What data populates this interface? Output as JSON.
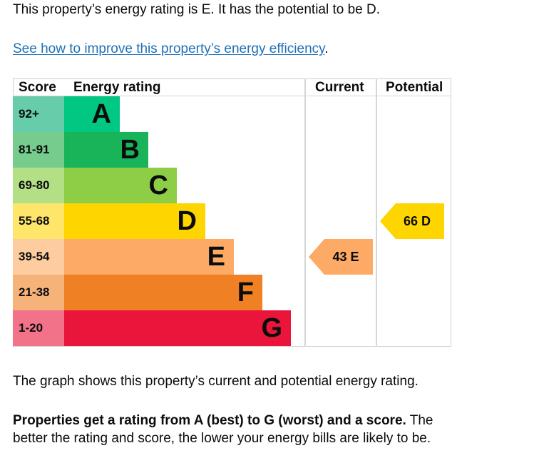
{
  "intro": "This property’s energy rating is E. It has the potential to be D.",
  "link": {
    "text": "See how to improve this property’s energy efficiency",
    "suffix": "."
  },
  "graph_note": "The graph shows this property’s current and potential energy rating.",
  "rating_note": {
    "bold": "Properties get a rating from A (best) to G (worst) and a score.",
    "rest": " The better the rating and score, the lower your energy bills are likely to be."
  },
  "chart_data": {
    "type": "bar",
    "title": "Energy rating",
    "columns": [
      "Score",
      "Energy rating",
      "Current",
      "Potential"
    ],
    "categories": [
      "A",
      "B",
      "C",
      "D",
      "E",
      "F",
      "G"
    ],
    "score_ranges": [
      "92+",
      "81-91",
      "69-80",
      "55-68",
      "39-54",
      "21-38",
      "1-20"
    ],
    "bar_colors": [
      "#00c781",
      "#19b459",
      "#8dce46",
      "#ffd500",
      "#fcaa65",
      "#ef8023",
      "#e9153b"
    ],
    "score_colors": [
      "#66ccaa",
      "#75cc8c",
      "#b3df85",
      "#ffe66a",
      "#fdcc9f",
      "#f5b37a",
      "#f27389"
    ],
    "current": {
      "score": 43,
      "rating": "E",
      "label": "43  E",
      "color": "#fcaa65"
    },
    "potential": {
      "score": 66,
      "rating": "D",
      "label": "66  D",
      "color": "#ffd500"
    }
  }
}
